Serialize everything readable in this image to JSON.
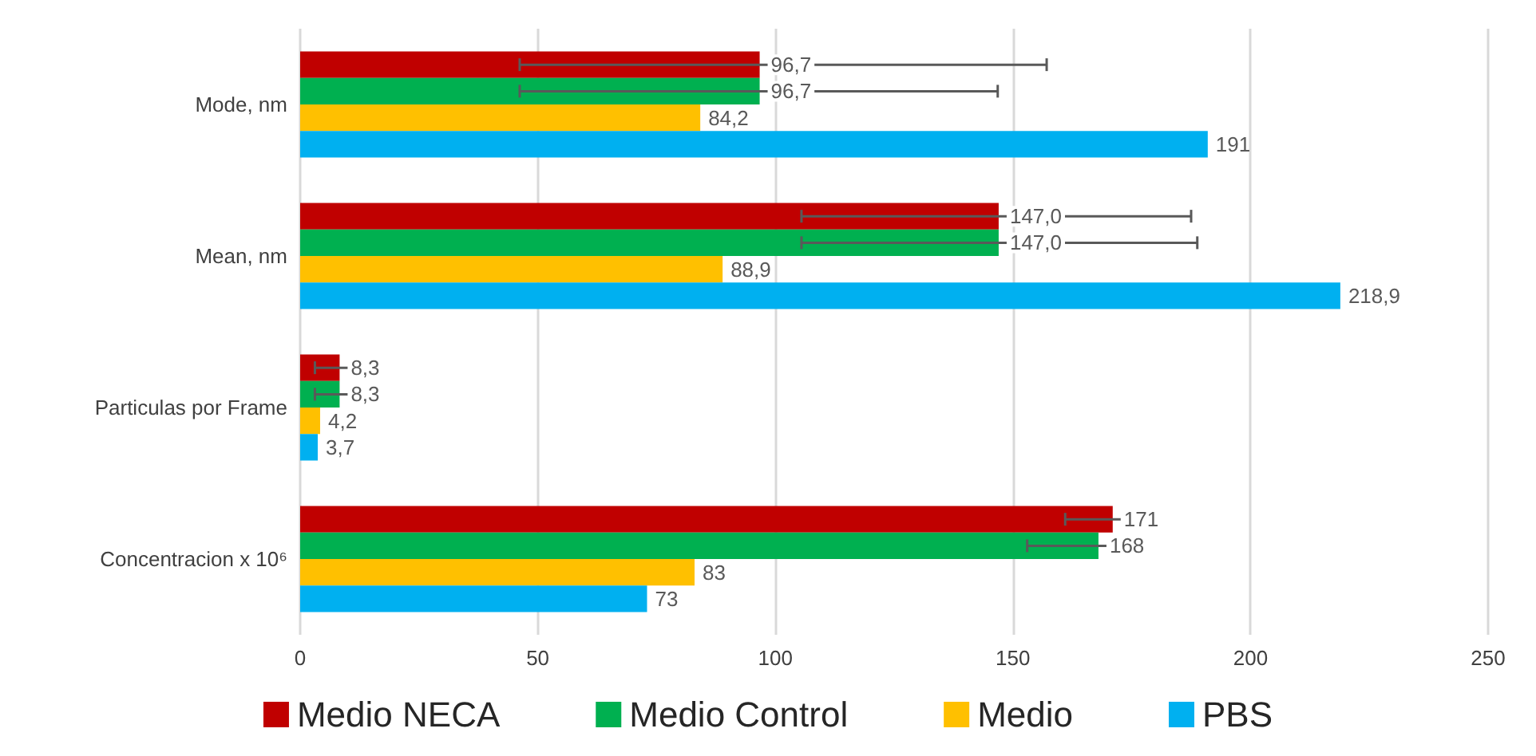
{
  "chart_data": {
    "type": "bar",
    "orientation": "horizontal",
    "categories": [
      "Mode, nm",
      "Mean, nm",
      "Particulas por Frame",
      "Concentracion x 10⁶"
    ],
    "series": [
      {
        "name": "Medio NECA",
        "color": "#c00000",
        "values": [
          96.7,
          147.0,
          8.3,
          171
        ],
        "value_labels": [
          "96,7",
          "147,0",
          "8,3",
          "171"
        ],
        "errors": [
          [
            46.2,
            157.1
          ],
          [
            105.5,
            187.5
          ],
          [
            3.1,
            12.3
          ],
          [
            161,
            179.6
          ]
        ]
      },
      {
        "name": "Medio Control",
        "color": "#00b050",
        "values": [
          96.7,
          147.0,
          8.3,
          168
        ],
        "value_labels": [
          "96,7",
          "147,0",
          "8,3",
          "168"
        ],
        "errors": [
          [
            46.2,
            146.8
          ],
          [
            105.5,
            188.8
          ],
          [
            3.1,
            12.3
          ],
          [
            153,
            175
          ]
        ]
      },
      {
        "name": "Medio",
        "color": "#ffc000",
        "values": [
          84.2,
          88.9,
          4.2,
          83
        ],
        "value_labels": [
          "84,2",
          "88,9",
          "4,2",
          "83"
        ]
      },
      {
        "name": "PBS",
        "color": "#00b0f0",
        "values": [
          191,
          218.9,
          3.7,
          73
        ],
        "value_labels": [
          "191",
          "218,9",
          "3,7",
          "73"
        ]
      }
    ],
    "xlim": [
      0,
      250
    ],
    "xticks": [
      0,
      50,
      100,
      150,
      200,
      250
    ],
    "grid": "x",
    "legend": "bottom"
  }
}
